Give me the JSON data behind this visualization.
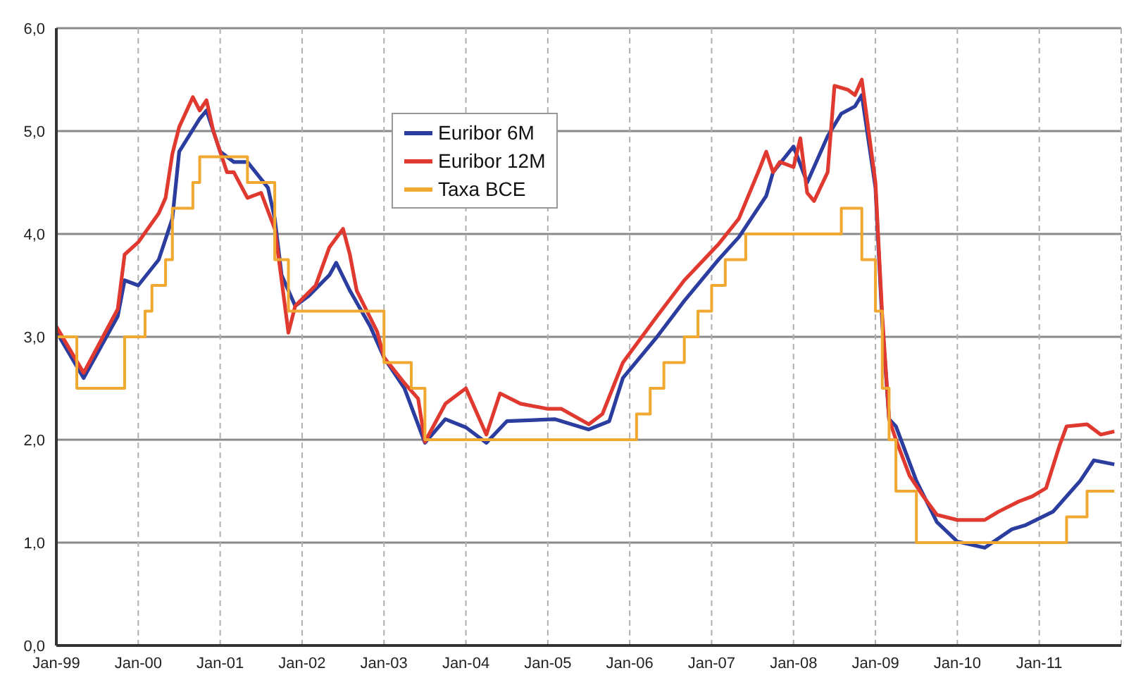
{
  "chart_data": {
    "type": "line",
    "xlim": [
      "1999-01",
      "2012-01"
    ],
    "xticks": [
      {
        "value": "1999-01",
        "label": "Jan-99"
      },
      {
        "value": "2000-01",
        "label": "Jan-00"
      },
      {
        "value": "2001-01",
        "label": "Jan-01"
      },
      {
        "value": "2002-01",
        "label": "Jan-02"
      },
      {
        "value": "2003-01",
        "label": "Jan-03"
      },
      {
        "value": "2004-01",
        "label": "Jan-04"
      },
      {
        "value": "2005-01",
        "label": "Jan-05"
      },
      {
        "value": "2006-01",
        "label": "Jan-06"
      },
      {
        "value": "2007-01",
        "label": "Jan-07"
      },
      {
        "value": "2008-01",
        "label": "Jan-08"
      },
      {
        "value": "2009-01",
        "label": "Jan-09"
      },
      {
        "value": "2010-01",
        "label": "Jan-10"
      },
      {
        "value": "2011-01",
        "label": "Jan-11"
      }
    ],
    "ylim": [
      0,
      6
    ],
    "yticks": [
      {
        "value": 0,
        "label": "0,0"
      },
      {
        "value": 1,
        "label": "1,0"
      },
      {
        "value": 2,
        "label": "2,0"
      },
      {
        "value": 3,
        "label": "3,0"
      },
      {
        "value": 4,
        "label": "4,0"
      },
      {
        "value": 5,
        "label": "5,0"
      },
      {
        "value": 6,
        "label": "6,0"
      }
    ],
    "grid": true,
    "legend": "top",
    "marker": "none",
    "line_style": "solid",
    "series": [
      {
        "name": "Euribor 6M",
        "color": "#2b3d9e",
        "type": "line",
        "x": [
          "1999-01",
          "1999-05",
          "1999-10",
          "1999-11",
          "2000-01",
          "2000-04",
          "2000-06",
          "2000-07",
          "2000-10",
          "2000-11",
          "2001-01",
          "2001-03",
          "2001-05",
          "2001-08",
          "2001-09",
          "2001-10",
          "2001-12",
          "2002-02",
          "2002-05",
          "2002-06",
          "2002-08",
          "2002-11",
          "2003-01",
          "2003-04",
          "2003-07",
          "2003-10",
          "2004-01",
          "2004-04",
          "2004-07",
          "2005-02",
          "2005-07",
          "2005-10",
          "2005-12",
          "2006-05",
          "2006-09",
          "2007-02",
          "2007-05",
          "2007-09",
          "2007-10",
          "2008-01",
          "2008-03",
          "2008-06",
          "2008-08",
          "2008-10",
          "2008-11",
          "2009-01",
          "2009-02",
          "2009-03",
          "2009-04",
          "2009-07",
          "2009-10",
          "2010-01",
          "2010-05",
          "2010-09",
          "2010-11",
          "2011-03",
          "2011-07",
          "2011-09",
          "2011-12"
        ],
        "values": [
          3.05,
          2.6,
          3.2,
          3.55,
          3.5,
          3.75,
          4.15,
          4.8,
          5.12,
          5.2,
          4.8,
          4.7,
          4.7,
          4.45,
          4.15,
          3.6,
          3.3,
          3.4,
          3.6,
          3.72,
          3.45,
          3.1,
          2.8,
          2.5,
          1.97,
          2.2,
          2.12,
          1.97,
          2.18,
          2.2,
          2.1,
          2.18,
          2.6,
          3.0,
          3.35,
          3.75,
          3.97,
          4.37,
          4.6,
          4.85,
          4.5,
          4.95,
          5.17,
          5.24,
          5.35,
          4.45,
          3.13,
          2.2,
          2.13,
          1.6,
          1.2,
          1.01,
          0.95,
          1.13,
          1.17,
          1.3,
          1.6,
          1.8,
          1.76
        ]
      },
      {
        "name": "Euribor 12M",
        "color": "#e03a30",
        "type": "line",
        "x": [
          "1999-01",
          "1999-05",
          "1999-10",
          "1999-11",
          "2000-01",
          "2000-04",
          "2000-05",
          "2000-06",
          "2000-07",
          "2000-09",
          "2000-10",
          "2000-11",
          "2000-12",
          "2001-02",
          "2001-03",
          "2001-05",
          "2001-07",
          "2001-09",
          "2001-10",
          "2001-11",
          "2001-12",
          "2002-03",
          "2002-05",
          "2002-07",
          "2002-08",
          "2002-09",
          "2002-12",
          "2003-01",
          "2003-04",
          "2003-06",
          "2003-07",
          "2003-10",
          "2004-01",
          "2004-02",
          "2004-04",
          "2004-06",
          "2004-09",
          "2005-01",
          "2005-03",
          "2005-07",
          "2005-09",
          "2005-12",
          "2006-05",
          "2006-09",
          "2007-02",
          "2007-05",
          "2007-08",
          "2007-09",
          "2007-10",
          "2007-11",
          "2008-01",
          "2008-02",
          "2008-03",
          "2008-04",
          "2008-06",
          "2008-07",
          "2008-09",
          "2008-10",
          "2008-11",
          "2009-01",
          "2009-02",
          "2009-03",
          "2009-04",
          "2009-06",
          "2009-08",
          "2009-10",
          "2010-01",
          "2010-05",
          "2010-07",
          "2010-10",
          "2010-12",
          "2011-02",
          "2011-04",
          "2011-05",
          "2011-08",
          "2011-10",
          "2011-12"
        ],
        "values": [
          3.1,
          2.65,
          3.27,
          3.8,
          3.92,
          4.2,
          4.35,
          4.78,
          5.04,
          5.33,
          5.2,
          5.3,
          5.0,
          4.6,
          4.6,
          4.35,
          4.4,
          4.05,
          3.55,
          3.04,
          3.3,
          3.5,
          3.87,
          4.05,
          3.8,
          3.45,
          3.05,
          2.8,
          2.55,
          2.4,
          1.98,
          2.35,
          2.5,
          2.35,
          2.05,
          2.45,
          2.35,
          2.3,
          2.3,
          2.15,
          2.25,
          2.75,
          3.2,
          3.55,
          3.9,
          4.15,
          4.63,
          4.8,
          4.6,
          4.7,
          4.65,
          4.93,
          4.4,
          4.32,
          4.6,
          5.44,
          5.4,
          5.35,
          5.5,
          4.5,
          3.2,
          2.2,
          2.0,
          1.65,
          1.45,
          1.27,
          1.22,
          1.22,
          1.3,
          1.4,
          1.45,
          1.53,
          1.95,
          2.13,
          2.15,
          2.05,
          2.08
        ]
      },
      {
        "name": "Taxa BCE",
        "color": "#f0a830",
        "type": "step",
        "x": [
          "1999-01",
          "1999-04",
          "1999-11",
          "2000-02",
          "2000-03",
          "2000-05",
          "2000-06",
          "2000-09",
          "2000-10",
          "2001-05",
          "2001-09",
          "2001-11",
          "2003-01",
          "2003-05",
          "2003-07",
          "2006-02",
          "2006-04",
          "2006-06",
          "2006-09",
          "2006-11",
          "2007-01",
          "2007-03",
          "2007-06",
          "2008-08",
          "2008-11",
          "2009-01",
          "2009-02",
          "2009-03",
          "2009-04",
          "2009-07",
          "2011-05",
          "2011-08",
          "2011-12"
        ],
        "values": [
          3.0,
          2.5,
          3.0,
          3.25,
          3.5,
          3.75,
          4.25,
          4.5,
          4.75,
          4.5,
          3.75,
          3.25,
          2.75,
          2.5,
          2.0,
          2.25,
          2.5,
          2.75,
          3.0,
          3.25,
          3.5,
          3.75,
          4.0,
          4.25,
          3.75,
          3.25,
          2.5,
          2.0,
          1.5,
          1.0,
          1.25,
          1.5,
          1.5
        ]
      }
    ]
  }
}
